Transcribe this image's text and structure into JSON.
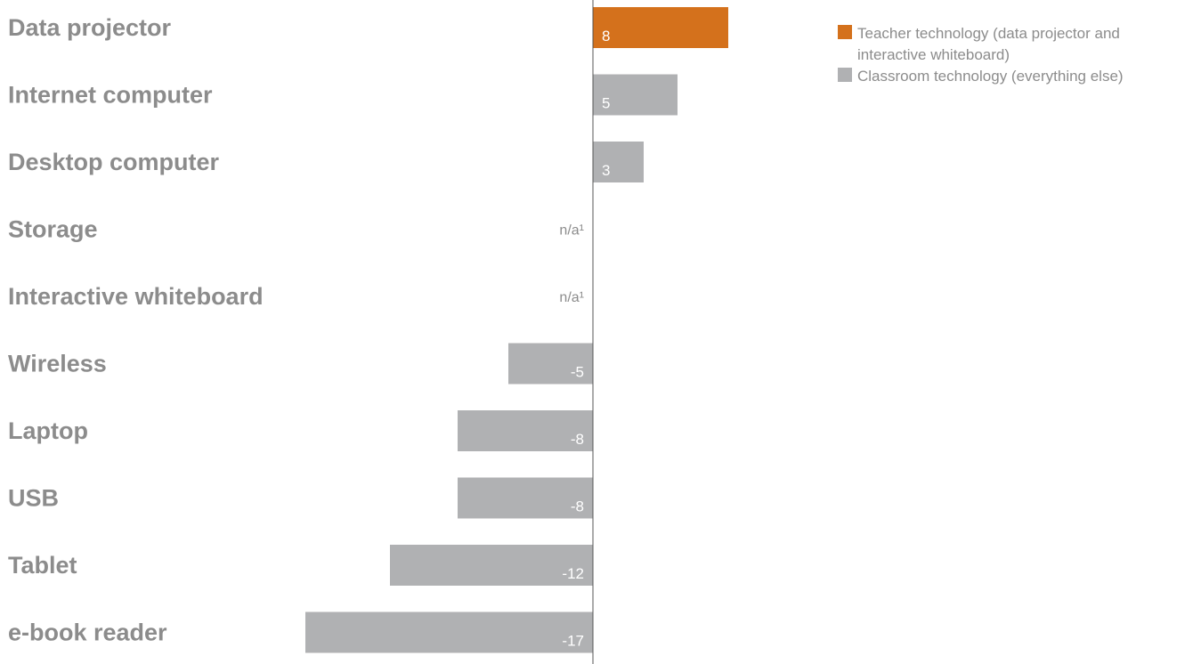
{
  "chart_data": {
    "type": "bar",
    "orientation": "horizontal",
    "categories": [
      "Data projector",
      "Internet computer",
      "Desktop computer",
      "Storage",
      "Interactive whiteboard",
      "Wireless",
      "Laptop",
      "USB",
      "Tablet",
      "e-book reader"
    ],
    "values": [
      8,
      5,
      3,
      null,
      null,
      -5,
      -8,
      -8,
      -12,
      -17
    ],
    "value_labels": [
      "8",
      "5",
      "3",
      "n/a¹",
      "n/a¹",
      "-5",
      "-8",
      "-8",
      "-12",
      "-17"
    ],
    "groups": [
      "teacher",
      "classroom",
      "classroom",
      "classroom",
      "teacher",
      "classroom",
      "classroom",
      "classroom",
      "classroom",
      "classroom"
    ],
    "legend": [
      {
        "key": "teacher",
        "label": "Teacher technology (data projector and interactive whiteboard)",
        "color": "#d4711c"
      },
      {
        "key": "classroom",
        "label": "Classroom technology (everything else)",
        "color": "#b0b1b3"
      }
    ],
    "legend_position": "top-right",
    "xlim": [
      -17,
      8
    ],
    "grid": false,
    "title": "",
    "xlabel": "",
    "ylabel": ""
  },
  "colors": {
    "label_text": "#8c8c8c",
    "axis_line": "#555555",
    "value_text": "#ffffff"
  }
}
